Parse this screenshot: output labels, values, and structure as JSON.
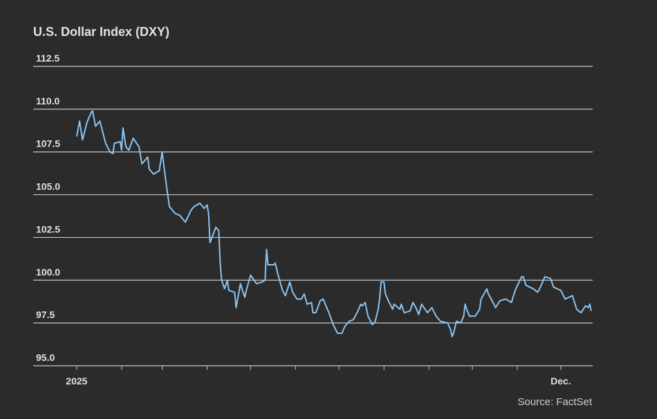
{
  "chart_data": {
    "type": "line",
    "title": "U.S. Dollar Index (DXY)",
    "source": "Source: FactSet",
    "x": [
      0,
      2,
      4,
      7,
      10,
      11,
      13,
      16,
      20,
      23,
      25,
      26,
      30,
      31,
      32,
      34,
      36,
      39,
      43,
      45,
      49,
      50,
      53,
      57,
      59,
      60,
      62,
      64,
      68,
      71,
      75,
      79,
      81,
      85,
      88,
      90,
      91,
      92,
      96,
      98,
      99,
      100,
      102,
      104,
      105,
      109,
      110,
      113,
      114,
      116,
      117,
      120,
      124,
      128,
      130,
      131,
      132,
      136,
      137,
      139,
      142,
      144,
      147,
      149,
      152,
      155,
      157,
      159,
      162,
      163,
      165,
      168,
      170,
      172,
      174,
      177,
      180,
      183,
      185,
      188,
      191,
      194,
      196,
      197,
      199,
      201,
      204,
      206,
      208,
      209,
      210,
      212,
      213,
      215,
      218,
      219,
      223,
      224,
      226,
      230,
      232,
      234,
      236,
      238,
      242,
      245,
      248,
      251,
      256,
      258,
      259,
      260,
      262,
      265,
      267,
      268,
      269,
      271,
      275,
      278,
      279,
      283,
      284,
      286,
      289,
      292,
      296,
      300,
      301,
      303,
      307,
      308,
      310,
      315,
      318,
      320,
      323,
      327,
      329,
      334,
      337,
      342,
      345,
      348,
      351,
      353,
      354,
      355
    ],
    "series": [
      {
        "name": "DXY",
        "color": "#8cc4f0",
        "values": [
          108.4,
          109.3,
          108.2,
          109.2,
          109.8,
          109.9,
          109.0,
          109.3,
          108.0,
          107.5,
          107.4,
          108.0,
          108.1,
          107.6,
          108.9,
          107.8,
          107.6,
          108.3,
          107.8,
          106.8,
          107.2,
          106.5,
          106.2,
          106.4,
          107.5,
          106.8,
          105.5,
          104.3,
          103.9,
          103.8,
          103.4,
          104.1,
          104.3,
          104.5,
          104.2,
          104.4,
          103.9,
          102.2,
          103.1,
          102.9,
          101.0,
          100.0,
          99.5,
          100.0,
          99.4,
          99.3,
          98.4,
          99.8,
          99.5,
          99.0,
          99.4,
          100.3,
          99.8,
          99.9,
          100.0,
          101.8,
          100.9,
          100.9,
          101.0,
          100.3,
          99.4,
          99.1,
          99.9,
          99.3,
          98.9,
          98.9,
          99.2,
          98.6,
          98.7,
          98.1,
          98.1,
          98.8,
          98.9,
          98.5,
          98.1,
          97.4,
          96.9,
          96.9,
          97.3,
          97.6,
          97.7,
          98.2,
          98.6,
          98.5,
          98.7,
          97.9,
          97.4,
          97.6,
          98.3,
          98.9,
          99.9,
          99.9,
          99.2,
          98.8,
          98.3,
          98.6,
          98.3,
          98.6,
          98.1,
          98.2,
          98.7,
          98.4,
          98.0,
          98.6,
          98.1,
          98.4,
          97.9,
          97.6,
          97.5,
          97.1,
          96.7,
          96.9,
          97.6,
          97.5,
          97.9,
          98.6,
          98.3,
          97.9,
          97.9,
          98.3,
          98.9,
          99.5,
          99.2,
          98.9,
          98.4,
          98.8,
          98.9,
          98.7,
          99.0,
          99.5,
          100.2,
          100.2,
          99.7,
          99.5,
          99.3,
          99.6,
          100.2,
          100.1,
          99.6,
          99.4,
          98.9,
          99.1,
          98.3,
          98.1,
          98.5,
          98.4,
          98.6,
          98.2
        ]
      }
    ],
    "xlim": [
      -30,
      356
    ],
    "xticks": [
      {
        "value": 0,
        "label": "2025"
      },
      {
        "value": 334,
        "label": "Dec."
      }
    ],
    "minor_xticks": [
      31,
      59,
      90,
      120,
      151,
      181,
      212,
      243,
      273,
      304
    ],
    "ylim": [
      95,
      112.5
    ],
    "yticks": [
      {
        "value": 95,
        "label": "95.0"
      },
      97.5,
      {
        "value": 100,
        "label": "100.0"
      },
      102.5,
      {
        "value": 105,
        "label": "105.0"
      },
      107.5,
      {
        "value": 110,
        "label": "110.0"
      },
      112.5
    ],
    "grid": true
  }
}
